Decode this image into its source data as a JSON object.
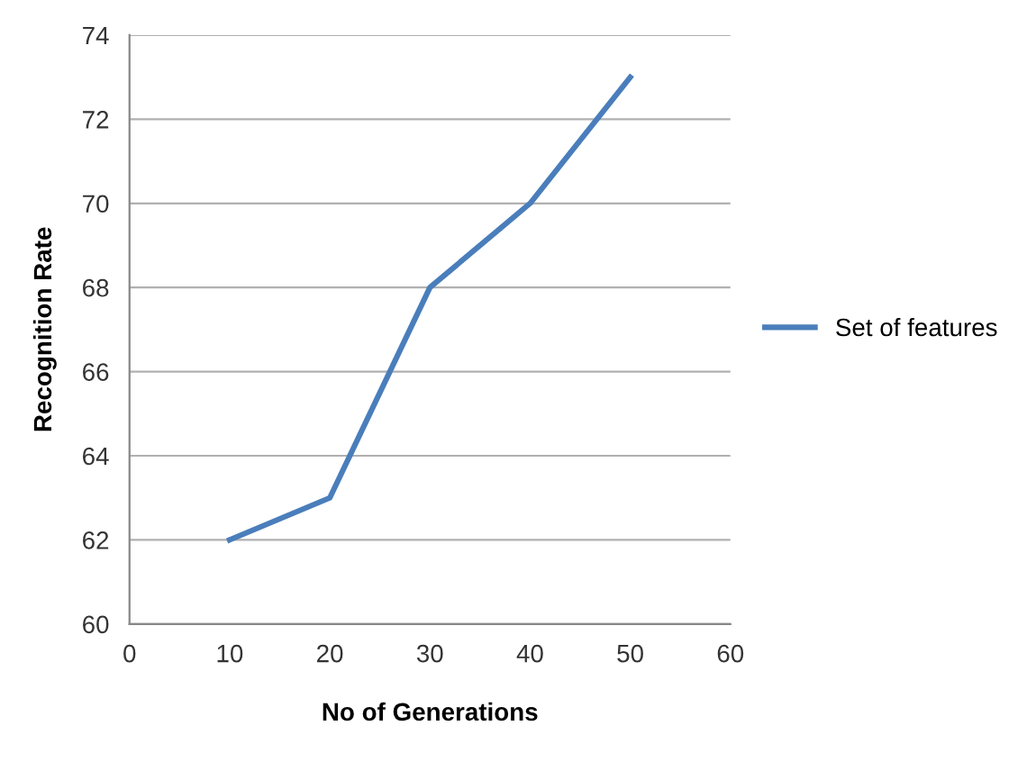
{
  "chart_data": {
    "type": "line",
    "xlabel": "No of Generations",
    "ylabel": "Recognition Rate",
    "x": [
      10,
      20,
      30,
      40,
      50
    ],
    "series": [
      {
        "name": "Set of features",
        "color": "#4a7ebb",
        "values": [
          62,
          63,
          68,
          70,
          73
        ]
      }
    ],
    "xlim": [
      0,
      60
    ],
    "xticks": [
      0,
      10,
      20,
      30,
      40,
      50,
      60
    ],
    "ylim": [
      60,
      74
    ],
    "yticks": [
      60,
      62,
      64,
      66,
      68,
      70,
      72,
      74
    ],
    "grid": "y",
    "legend": "right",
    "marker": "none",
    "line_style": "solid"
  }
}
